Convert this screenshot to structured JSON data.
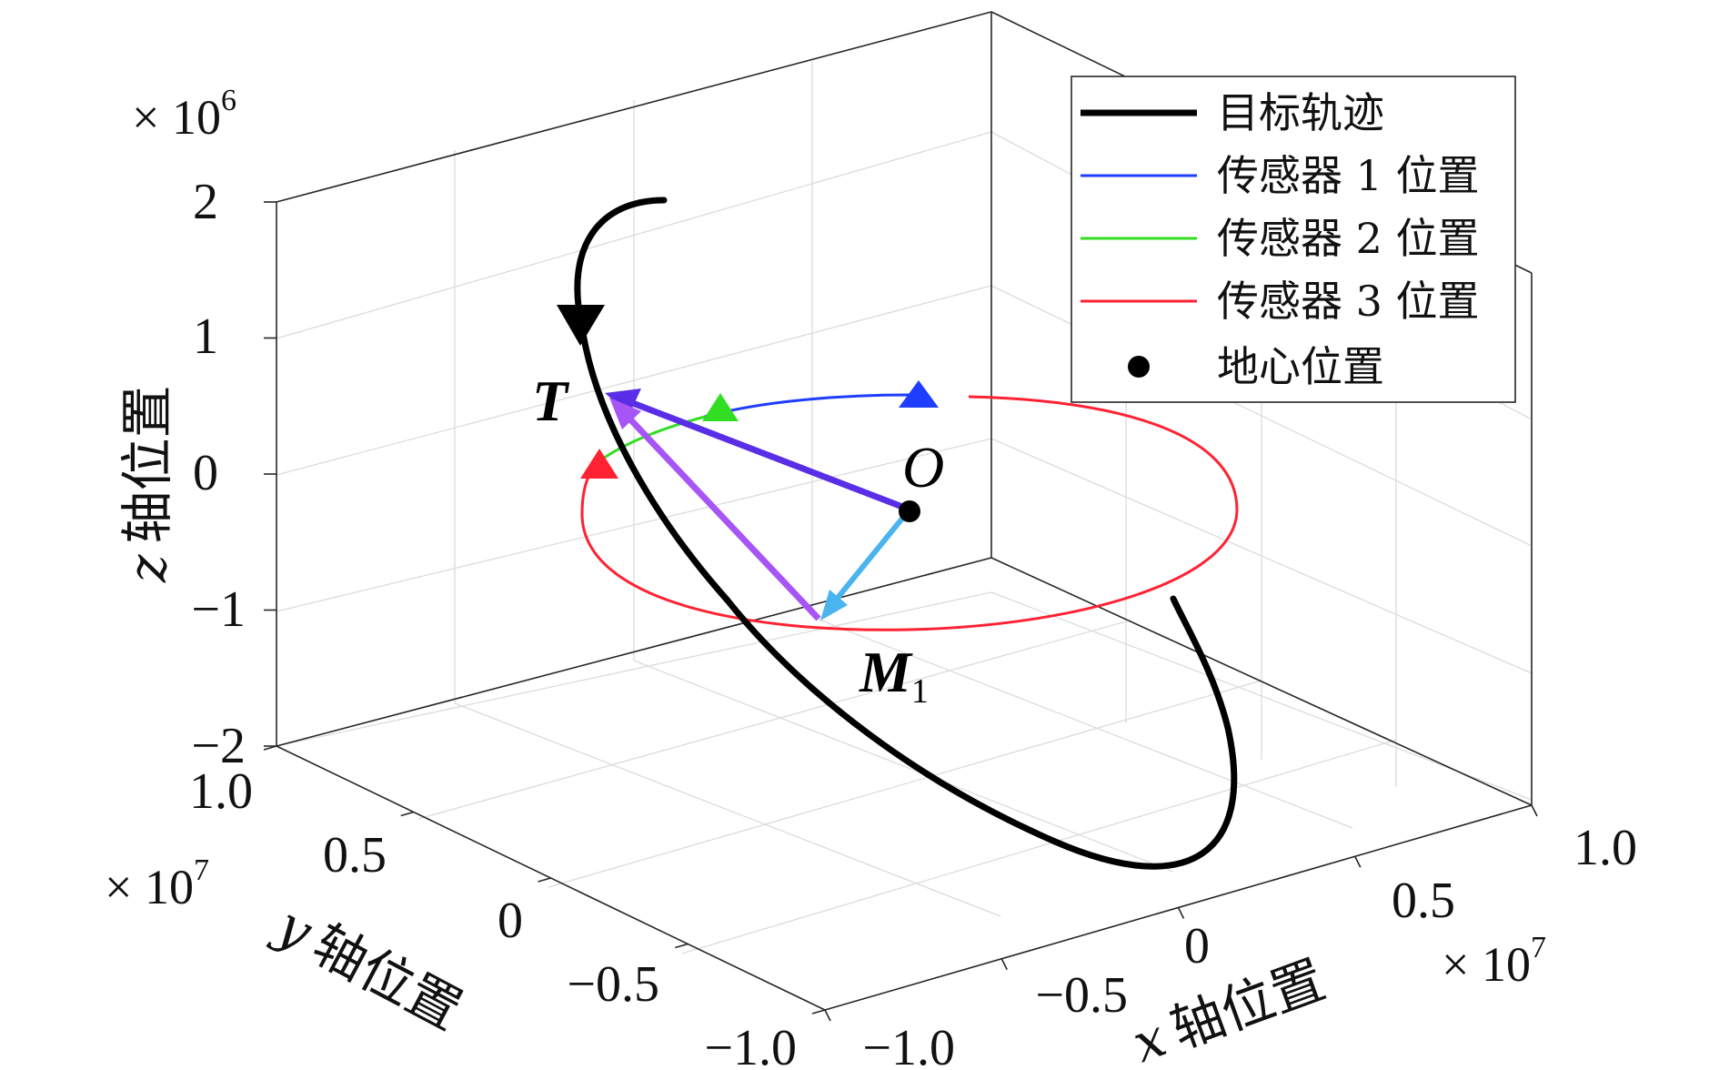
{
  "chart_data": {
    "type": "line",
    "projection": "3d",
    "axes": {
      "x": {
        "label_var": "x",
        "label_text": "轴位置",
        "ticks": [
          "−1.0",
          "−0.5",
          "0",
          "0.5",
          "1.0"
        ],
        "tick_values": [
          -1.0,
          -0.5,
          0,
          0.5,
          1.0
        ],
        "multiplier": "× 10",
        "multiplier_exp": "7",
        "range": [
          -1.0,
          1.0
        ]
      },
      "y": {
        "label_var": "y",
        "label_text": "轴位置",
        "ticks": [
          "−1.0",
          "−0.5",
          "0",
          "0.5",
          "1.0"
        ],
        "tick_values": [
          -1.0,
          -0.5,
          0,
          0.5,
          1.0
        ],
        "multiplier": "× 10",
        "multiplier_exp": "7",
        "range": [
          -1.0,
          1.0
        ]
      },
      "z": {
        "label_var": "z",
        "label_text": "轴位置",
        "ticks": [
          "−2",
          "−1",
          "0",
          "1",
          "2"
        ],
        "tick_values": [
          -2,
          -1,
          0,
          1,
          2
        ],
        "multiplier": "× 10",
        "multiplier_exp": "6",
        "range": [
          -2,
          2
        ]
      }
    },
    "grid": true,
    "legend_position": "top-right",
    "legend": [
      {
        "label": "目标轨迹",
        "color": "#000000",
        "kind": "thick-line"
      },
      {
        "label": "传感器 1 位置",
        "color": "#1f3dff",
        "kind": "line"
      },
      {
        "label": "传感器 2 位置",
        "color": "#33dd22",
        "kind": "line"
      },
      {
        "label": "传感器 3 位置",
        "color": "#ff2233",
        "kind": "line"
      },
      {
        "label": "地心位置",
        "color": "#000000",
        "kind": "dot"
      }
    ],
    "annotations": [
      {
        "id": "T",
        "text": "T"
      },
      {
        "id": "O",
        "text": "O"
      },
      {
        "id": "M",
        "text": "M",
        "subscript": "1"
      }
    ],
    "series_colors": {
      "target": "#000000",
      "sensor1": "#1f3dff",
      "sensor2": "#33dd22",
      "sensor3": "#ff2233",
      "vec_OT": "#5a2ee6",
      "vec_M1T": "#a855f7",
      "vec_OM1": "#4ab4ee"
    }
  }
}
